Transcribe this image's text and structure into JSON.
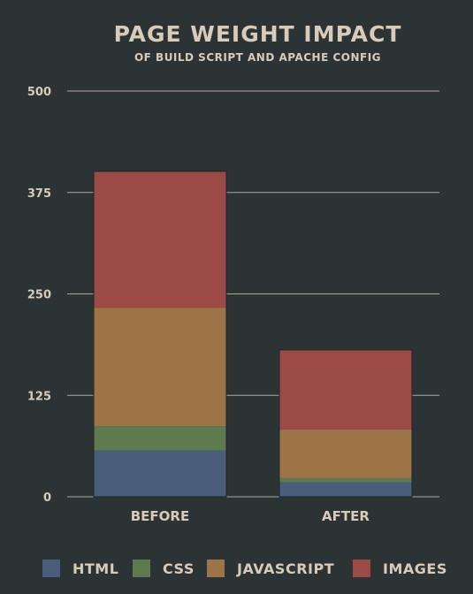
{
  "chart_data": {
    "type": "bar",
    "stacked": true,
    "title": "PAGE WEIGHT IMPACT",
    "subtitle": "OF BUILD SCRIPT AND APACHE CONFIG",
    "categories": [
      "BEFORE",
      "AFTER"
    ],
    "series": [
      {
        "name": "HTML",
        "values": [
          57,
          18
        ],
        "color": "#4a5e7c"
      },
      {
        "name": "CSS",
        "values": [
          30,
          5
        ],
        "color": "#5e7a4e"
      },
      {
        "name": "JAVASCRIPT",
        "values": [
          146,
          60
        ],
        "color": "#9c7448"
      },
      {
        "name": "IMAGES",
        "values": [
          168,
          98
        ],
        "color": "#9c4a45"
      }
    ],
    "ylim": [
      0,
      500
    ],
    "yticks": [
      0,
      125,
      250,
      375,
      500
    ],
    "ytick_labels": [
      "0",
      "125",
      "250",
      "375",
      "500"
    ],
    "grid": true,
    "legend_position": "bottom"
  }
}
